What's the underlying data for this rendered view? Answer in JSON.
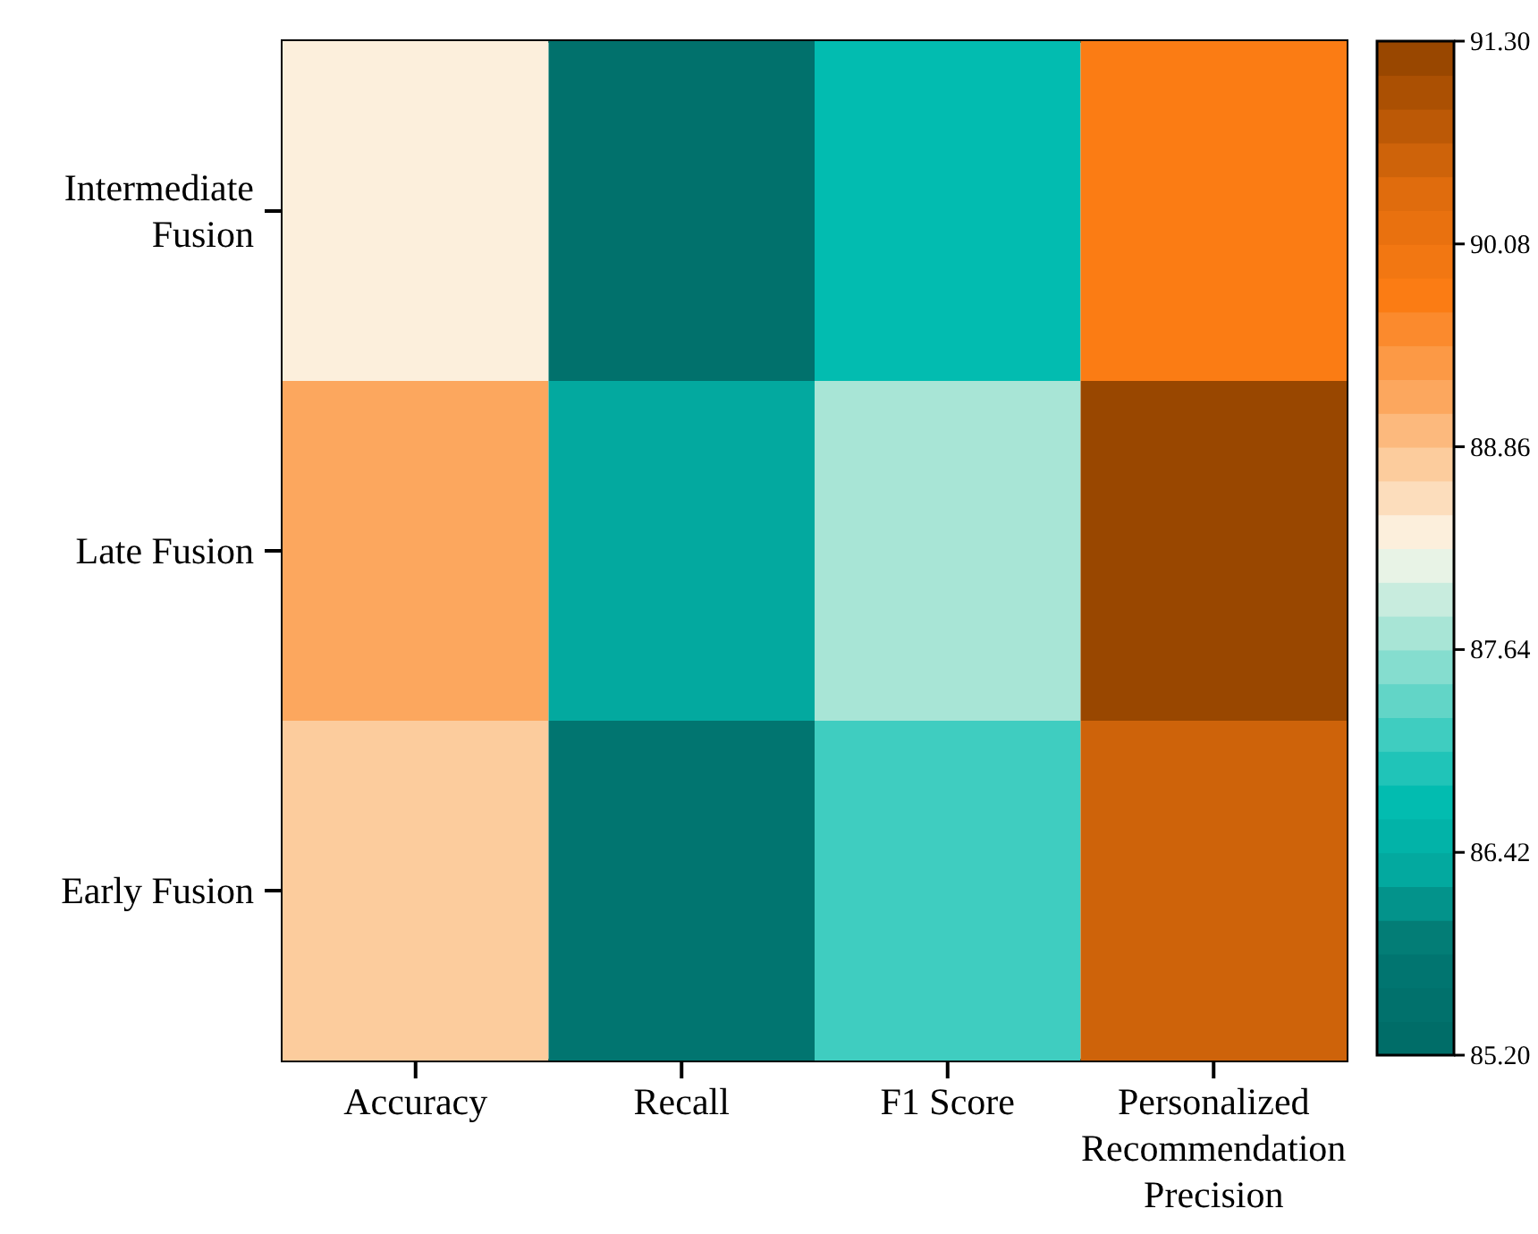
{
  "chart_data": {
    "type": "heatmap",
    "categories": [
      "Accuracy",
      "Recall",
      "F1 Score",
      "Personalized Recommendation Precision"
    ],
    "y_categories": [
      "Intermediate Fusion",
      "Late Fusion",
      "Early Fusion"
    ],
    "cells": [
      [
        88.3,
        85.5,
        86.7,
        89.8
      ],
      [
        89.2,
        86.4,
        87.7,
        91.2
      ],
      [
        88.8,
        85.7,
        87.1,
        90.5
      ]
    ],
    "clim": [
      85.2,
      91.3
    ],
    "cticks": [
      {
        "value": 85.2,
        "label": "85.20"
      },
      {
        "value": 86.42,
        "label": "86.42"
      },
      {
        "value": 87.64,
        "label": "87.64"
      },
      {
        "value": 88.86,
        "label": "88.86"
      },
      {
        "value": 90.08,
        "label": "90.08"
      },
      {
        "value": 91.3,
        "label": "91.30"
      }
    ]
  }
}
